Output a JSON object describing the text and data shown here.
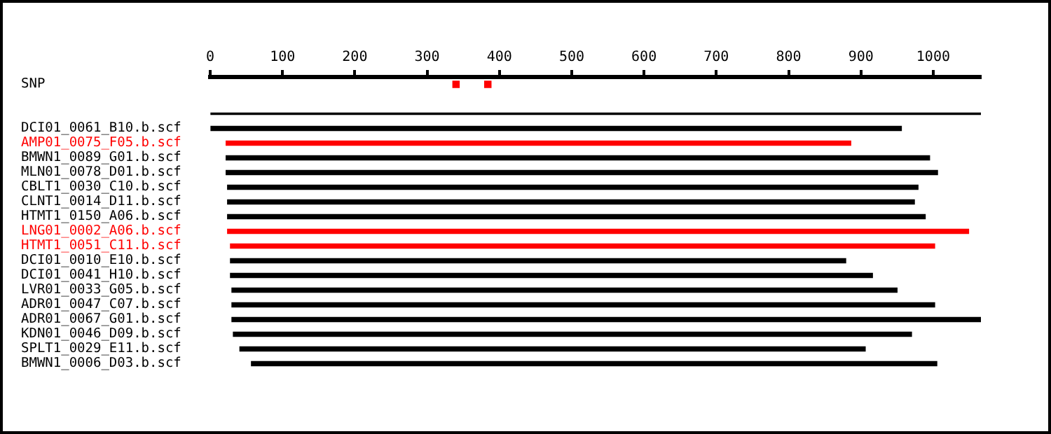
{
  "chart_data": {
    "type": "bar",
    "orientation": "horizontal",
    "categories": [
      "SNP",
      null,
      null,
      "DCI01_0061_B10.b.scf",
      "AMP01_0075_F05.b.scf",
      "BMWN1_0089_G01.b.scf",
      "MLN01_0078_D01.b.scf",
      "CBLT1_0030_C10.b.scf",
      "CLNT1_0014_D11.b.scf",
      "HTMT1_0150_A06.b.scf",
      "LNG01_0002_A06.b.scf",
      "HTMT1_0051_C11.b.scf",
      "DCI01_0010_E10.b.scf",
      "DCI01_0041_H10.b.scf",
      "LVR01_0033_G05.b.scf",
      "ADR01_0047_C07.b.scf",
      "ADR01_0067_G01.b.scf",
      "KDN01_0046_D09.b.scf",
      "SPLT1_0029_E11.b.scf",
      "BMWN1_0006_D03.b.scf"
    ],
    "series": [
      {
        "type": "scatter",
        "marker": "square",
        "color": "#ff0000",
        "x": [
          "SNP",
          "SNP"
        ],
        "values": [
          340,
          384
        ]
      },
      {
        "color": "#000000",
        "values": [
          null,
          null,
          1066,
          null,
          null,
          null,
          null,
          null,
          null,
          null,
          null,
          null,
          null,
          null,
          null,
          null,
          null,
          null,
          null,
          null
        ],
        "base": [
          null,
          null,
          0,
          null,
          null,
          null,
          null,
          null,
          null,
          null,
          null,
          null,
          null,
          null,
          null,
          null,
          null,
          null,
          null,
          null
        ]
      },
      {
        "colors": [
          "#000000",
          "#000000",
          "#000000",
          "#000000",
          "#ff0000",
          "#000000",
          "#000000",
          "#000000",
          "#000000",
          "#000000",
          "#ff0000",
          "#ff0000",
          "#000000",
          "#000000",
          "#000000",
          "#000000",
          "#000000",
          "#000000",
          "#000000",
          "#000000"
        ],
        "values": [
          null,
          null,
          null,
          955,
          864,
          973,
          984,
          955,
          950,
          965,
          1025,
          974,
          851,
          888,
          920,
          972,
          1036,
          938,
          865,
          948
        ],
        "base": [
          null,
          null,
          null,
          1,
          22,
          22,
          22,
          24,
          24,
          24,
          24,
          28,
          28,
          28,
          30,
          30,
          30,
          32,
          41,
          57
        ]
      }
    ],
    "xlim": [
      0,
      1066
    ],
    "xticks": [
      0,
      100,
      200,
      300,
      400,
      500,
      600,
      700,
      800,
      900,
      1000
    ],
    "grid": false,
    "legend": false
  }
}
